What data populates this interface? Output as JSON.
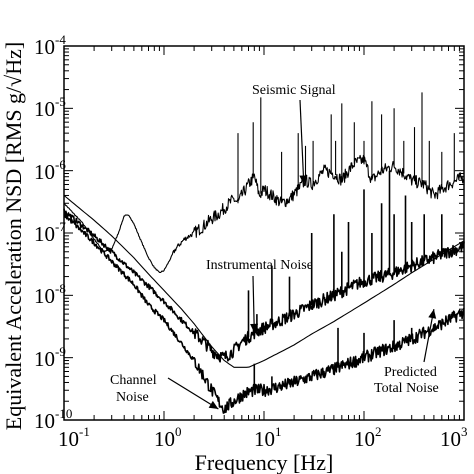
{
  "chart_data": {
    "type": "line",
    "xlabel": "Frequency [Hz]",
    "ylabel": "Equivalent Acceleration NSD [RMS g/√Hz]",
    "x_scale": "log",
    "y_scale": "log",
    "xlim": [
      0.1,
      1000
    ],
    "ylim": [
      1e-10,
      0.0001
    ],
    "grid": false,
    "x_ticks": [
      {
        "base": "10",
        "exp": "-1"
      },
      {
        "base": "10",
        "exp": "0"
      },
      {
        "base": "10",
        "exp": "1"
      },
      {
        "base": "10",
        "exp": "2"
      },
      {
        "base": "10",
        "exp": "3"
      }
    ],
    "y_ticks": [
      {
        "base": "10",
        "exp": "-10"
      },
      {
        "base": "10",
        "exp": "-9"
      },
      {
        "base": "10",
        "exp": "-8"
      },
      {
        "base": "10",
        "exp": "-7"
      },
      {
        "base": "10",
        "exp": "-6"
      },
      {
        "base": "10",
        "exp": "-5"
      },
      {
        "base": "10",
        "exp": "-4"
      }
    ],
    "annotations": [
      {
        "text": "Seismic Signal",
        "target": [
          25,
          6e-07
        ]
      },
      {
        "text": "Instrumental Noise",
        "target": [
          8,
          2.5e-09
        ]
      },
      {
        "text": "Channel Noise",
        "target": [
          3.5,
          1.5e-10
        ]
      },
      {
        "text": "Predicted",
        "target": [
          500,
          6e-09
        ]
      },
      {
        "text": "Total Noise",
        "target": null
      }
    ],
    "series": [
      {
        "key": "seismic",
        "style": "thin",
        "x": [
          0.1,
          0.15,
          0.2,
          0.25,
          0.3,
          0.35,
          0.4,
          0.45,
          0.5,
          0.6,
          0.7,
          0.8,
          0.9,
          1.0,
          1.1,
          1.3,
          1.6,
          2.0,
          2.5,
          3.0,
          3.5,
          4.0,
          4.5,
          5.0,
          5.5,
          6.0,
          7.0,
          8.0,
          9.0,
          10.0,
          12.0,
          15.0,
          18.0,
          22.0,
          26.0,
          30.0,
          35.0,
          40.0,
          50.0,
          60.0,
          70.0,
          80.0,
          100.0,
          120.0,
          150.0,
          200.0,
          250.0,
          300.0,
          400.0,
          500.0,
          700.0,
          1000.0
        ],
        "y": [
          3e-07,
          1.5e-07,
          8e-08,
          5e-08,
          5.5e-08,
          1e-07,
          1.9e-07,
          1.9e-07,
          1.4e-07,
          7e-08,
          4e-08,
          2.8e-08,
          2.3e-08,
          2.5e-08,
          3.3e-08,
          5.5e-08,
          8e-08,
          1e-07,
          1.3e-07,
          1.7e-07,
          2e-07,
          2.5e-07,
          3e-07,
          3.5e-07,
          3e-07,
          4e-07,
          6e-07,
          8e-07,
          4e-07,
          5e-07,
          4e-07,
          3e-07,
          3.5e-07,
          5e-07,
          7e-07,
          6e-07,
          8e-07,
          1e-06,
          9e-07,
          7e-07,
          1e-06,
          1.3e-06,
          1.5e-06,
          7e-07,
          1e-06,
          1.2e-06,
          9e-07,
          7e-07,
          6e-07,
          4e-07,
          6e-07,
          8e-07
        ],
        "spikes": [
          [
            5.5,
            4e-06
          ],
          [
            7.8,
            6e-06
          ],
          [
            9.3,
            1.5e-05
          ],
          [
            15.0,
            2e-06
          ],
          [
            22.0,
            4e-06
          ],
          [
            26.0,
            2.5e-06
          ],
          [
            31.0,
            3e-06
          ],
          [
            47.0,
            8e-06
          ],
          [
            52.0,
            3e-06
          ],
          [
            60.0,
            1.2e-05
          ],
          [
            80.0,
            6e-06
          ],
          [
            100.0,
            3e-06
          ],
          [
            120.0,
            1.3e-05
          ],
          [
            150.0,
            8e-06
          ],
          [
            200.0,
            1e-05
          ],
          [
            250.0,
            3e-06
          ],
          [
            320.0,
            5e-06
          ],
          [
            380.0,
            1.8e-05
          ],
          [
            450.0,
            3e-06
          ],
          [
            600.0,
            2e-06
          ],
          [
            800.0,
            4e-06
          ]
        ]
      },
      {
        "key": "instrumental",
        "style": "thick",
        "x": [
          0.1,
          0.2,
          0.3,
          0.5,
          0.7,
          1.0,
          1.5,
          2.0,
          2.5,
          3.0,
          3.5,
          4.0,
          5.0,
          6.0,
          8.0,
          10.0,
          15.0,
          20.0,
          30.0,
          50.0,
          70.0,
          100.0,
          150.0,
          200.0,
          300.0,
          500.0,
          700.0,
          1000.0
        ],
        "y": [
          2.3e-07,
          9e-08,
          5e-08,
          2.3e-08,
          1.4e-08,
          8e-09,
          4e-09,
          2.5e-09,
          1.8e-09,
          1.3e-09,
          1.1e-09,
          1e-09,
          1.3e-09,
          1.8e-09,
          2.5e-09,
          3e-09,
          4e-09,
          5e-09,
          7e-09,
          1e-08,
          1.3e-08,
          1.7e-08,
          2e-08,
          2.3e-08,
          3e-08,
          4e-08,
          5e-08,
          6e-08
        ],
        "spikes": [
          [
            7.0,
            1.2e-08
          ],
          [
            8.5,
            5e-09
          ],
          [
            12.0,
            3e-08
          ],
          [
            18.0,
            2e-08
          ],
          [
            30.0,
            1e-07
          ],
          [
            50.0,
            2e-07
          ],
          [
            60.0,
            5e-08
          ],
          [
            70.0,
            1.5e-07
          ],
          [
            100.0,
            5e-07
          ],
          [
            120.0,
            1e-07
          ],
          [
            150.0,
            3e-07
          ],
          [
            180.0,
            1e-06
          ],
          [
            200.0,
            2e-07
          ],
          [
            260.0,
            4e-07
          ],
          [
            300.0,
            1.5e-07
          ],
          [
            400.0,
            2e-07
          ],
          [
            600.0,
            2e-07
          ]
        ]
      },
      {
        "key": "predicted",
        "style": "thin",
        "x": [
          0.1,
          0.2,
          0.3,
          0.5,
          0.7,
          1.0,
          1.5,
          2.0,
          3.0,
          4.0,
          5.0,
          7.0,
          10.0,
          20.0,
          30.0,
          50.0,
          100.0,
          200.0,
          300.0,
          500.0,
          700.0,
          1000.0
        ],
        "y": [
          4e-07,
          1.6e-07,
          9e-08,
          4e-08,
          2.2e-08,
          1.2e-08,
          6e-09,
          3.5e-09,
          1.5e-09,
          9e-10,
          7e-10,
          7e-10,
          9e-10,
          1.6e-09,
          2.4e-09,
          3.8e-09,
          7.5e-09,
          1.5e-08,
          2.3e-08,
          3.8e-08,
          5.3e-08,
          7.5e-08
        ],
        "spikes": []
      },
      {
        "key": "channel",
        "style": "thick",
        "x": [
          0.1,
          0.2,
          0.3,
          0.5,
          0.7,
          1.0,
          1.5,
          2.0,
          2.5,
          3.0,
          3.5,
          4.0,
          5.0,
          6.0,
          7.0,
          8.0,
          10.0,
          15.0,
          20.0,
          30.0,
          50.0,
          70.0,
          100.0,
          150.0,
          200.0,
          300.0,
          500.0,
          700.0,
          1000.0
        ],
        "y": [
          2e-07,
          7e-08,
          3.5e-08,
          1.5e-08,
          7e-09,
          4e-09,
          1.7e-09,
          9e-10,
          5e-10,
          3e-10,
          2e-10,
          1.5e-10,
          2e-10,
          2.5e-10,
          2.8e-10,
          3e-10,
          3e-10,
          3.5e-10,
          4e-10,
          5e-10,
          6.5e-10,
          8e-10,
          1e-09,
          1.3e-09,
          1.5e-09,
          2e-09,
          3e-09,
          4e-09,
          5.5e-09
        ],
        "spikes": [
          [
            8.0,
            8e-10
          ],
          [
            12.0,
            5e-10
          ],
          [
            55.0,
            3e-09
          ],
          [
            100.0,
            2.5e-09
          ],
          [
            200.0,
            4e-09
          ],
          [
            300.0,
            3e-09
          ]
        ]
      }
    ]
  }
}
